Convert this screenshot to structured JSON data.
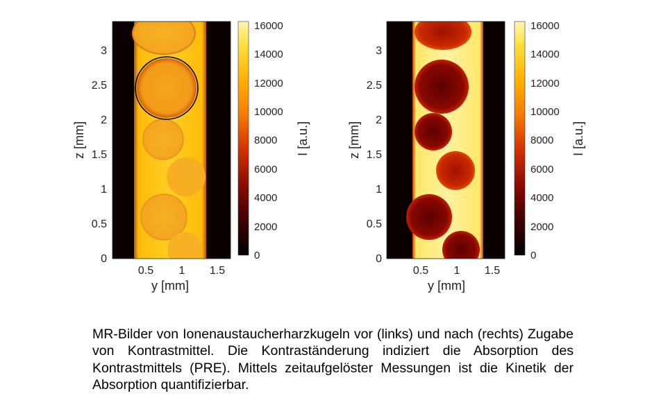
{
  "panels": [
    {
      "id": "left",
      "condition_hint": "vor",
      "ylabel": "z [mm]",
      "xlabel": "y [mm]",
      "x_ticks": [
        "0.5",
        "1",
        "1.5"
      ],
      "y_ticks": [
        "0",
        "0.5",
        "1",
        "1.5",
        "2",
        "2.5",
        "3"
      ],
      "colorbar_label": "I [a.u.]",
      "colorbar_ticks": [
        "0",
        "2000",
        "4000",
        "6000",
        "8000",
        "10000",
        "12000",
        "14000",
        "16000"
      ]
    },
    {
      "id": "right",
      "condition_hint": "nach",
      "ylabel": "z [mm]",
      "xlabel": "y [mm]",
      "x_ticks": [
        "0.5",
        "1",
        "1.5"
      ],
      "y_ticks": [
        "0",
        "0.5",
        "1",
        "1.5",
        "2",
        "2.5",
        "3"
      ],
      "colorbar_label": "I [a.u.]",
      "colorbar_ticks": [
        "0",
        "2000",
        "4000",
        "6000",
        "8000",
        "10000",
        "12000",
        "14000",
        "16000"
      ]
    }
  ],
  "colormap": [
    "#000000",
    "#3a0000",
    "#8a0a00",
    "#d43000",
    "#f57a00",
    "#ffb000",
    "#ffe040",
    "#fff7b0"
  ],
  "caption": "MR-Bilder von Ionenaustaucherharzkugeln vor (links) und nach (rechts) Zugabe von Kontrastmittel. Die Kontraständerung indiziert die Absorption des Kontrastmittels (PRE).  Mittels zeitaufgelöster Messungen ist die Kinetik der Absorption quantifizierbar."
}
